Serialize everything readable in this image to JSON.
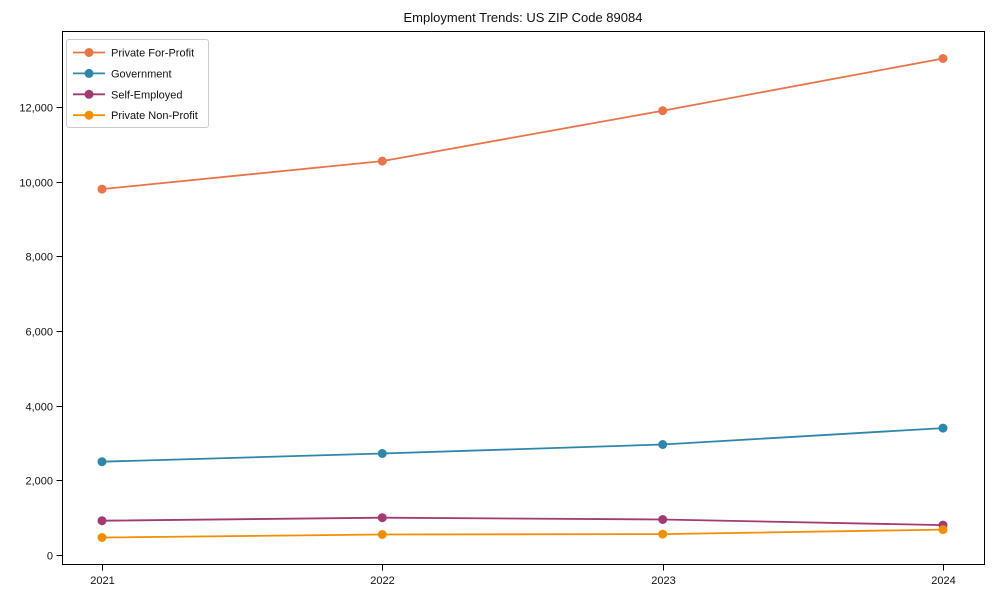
{
  "figure": {
    "background_color": "#ffffff",
    "frame_color": "#000000"
  },
  "chart_data": {
    "type": "line",
    "title": "Employment Trends: US ZIP Code 89084",
    "xlabel": "",
    "ylabel": "",
    "x": [
      "2021",
      "2022",
      "2023",
      "2024"
    ],
    "series": [
      {
        "name": "Private For-Profit",
        "color": "#E8744A",
        "values": [
          9800,
          10550,
          11900,
          13300
        ]
      },
      {
        "name": "Government",
        "color": "#2E86AB",
        "values": [
          2500,
          2720,
          2960,
          3400
        ]
      },
      {
        "name": "Self-Employed",
        "color": "#A23B72",
        "values": [
          920,
          1000,
          950,
          800
        ]
      },
      {
        "name": "Private Non-Profit",
        "color": "#F18F01",
        "values": [
          470,
          550,
          560,
          680
        ]
      }
    ],
    "yticks": [
      0,
      2000,
      4000,
      6000,
      8000,
      10000,
      12000
    ],
    "ytick_labels": [
      "0",
      "2,000",
      "4,000",
      "6,000",
      "8,000",
      "10,000",
      "12,000"
    ],
    "ylim": [
      -300,
      14050
    ],
    "grid": false,
    "legend_position": "upper-left",
    "marker": "circle",
    "line_width": 1.8,
    "marker_radius": 4.5
  }
}
